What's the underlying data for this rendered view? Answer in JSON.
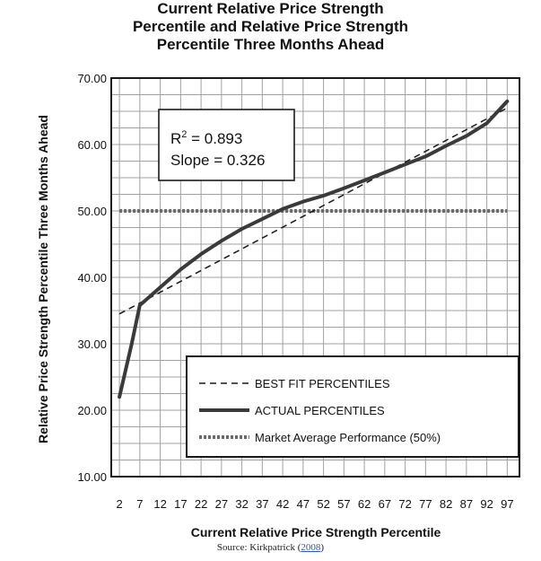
{
  "chart_data": {
    "type": "line",
    "title_lines": [
      "Current Relative Price Strength",
      "Percentile and Relative Price Strength",
      "Percentile Three Months Ahead"
    ],
    "xlabel": "Current Relative Price Strength Percentile",
    "ylabel": "Relative Price Strength Percentile Three Months Ahead",
    "x_ticks": [
      2,
      7,
      12,
      17,
      22,
      27,
      32,
      37,
      42,
      47,
      52,
      57,
      62,
      67,
      72,
      77,
      82,
      87,
      92,
      97
    ],
    "xlim": [
      0,
      100
    ],
    "y_ticks": [
      "10.00",
      "20.00",
      "30.00",
      "40.00",
      "50.00",
      "60.00",
      "70.00"
    ],
    "ylim": [
      10,
      70
    ],
    "grid": true,
    "series": [
      {
        "name": "BEST FIT PERCENTILES",
        "style": "dashed",
        "x": [
          2,
          97
        ],
        "values": [
          34.5,
          65.5
        ]
      },
      {
        "name": "ACTUAL PERCENTILES",
        "style": "solid",
        "x": [
          2,
          5,
          7,
          12,
          17,
          22,
          27,
          32,
          37,
          42,
          47,
          52,
          57,
          62,
          67,
          72,
          77,
          82,
          87,
          92,
          97
        ],
        "values": [
          22,
          30,
          35.8,
          38.5,
          41.2,
          43.5,
          45.5,
          47.3,
          48.8,
          50.3,
          51.4,
          52.3,
          53.4,
          54.6,
          55.8,
          57,
          58.2,
          59.8,
          61.3,
          63.2,
          66.5
        ]
      },
      {
        "name": "Market Average Performance (50%)",
        "style": "dotted",
        "x": [
          2,
          97
        ],
        "values": [
          50,
          50
        ]
      }
    ],
    "annotations": {
      "r2_label": "R",
      "r2_sup": "2",
      "r2_value": " = 0.893",
      "slope": "Slope = 0.326"
    },
    "legend_position": "bottom-right",
    "colors": {
      "line": "#3a3a3a",
      "grid": "#a0a0a0",
      "text": "#111111"
    }
  },
  "source": {
    "prefix": "Source: Kirkpatrick (",
    "citation": "2008",
    "suffix": ")"
  }
}
